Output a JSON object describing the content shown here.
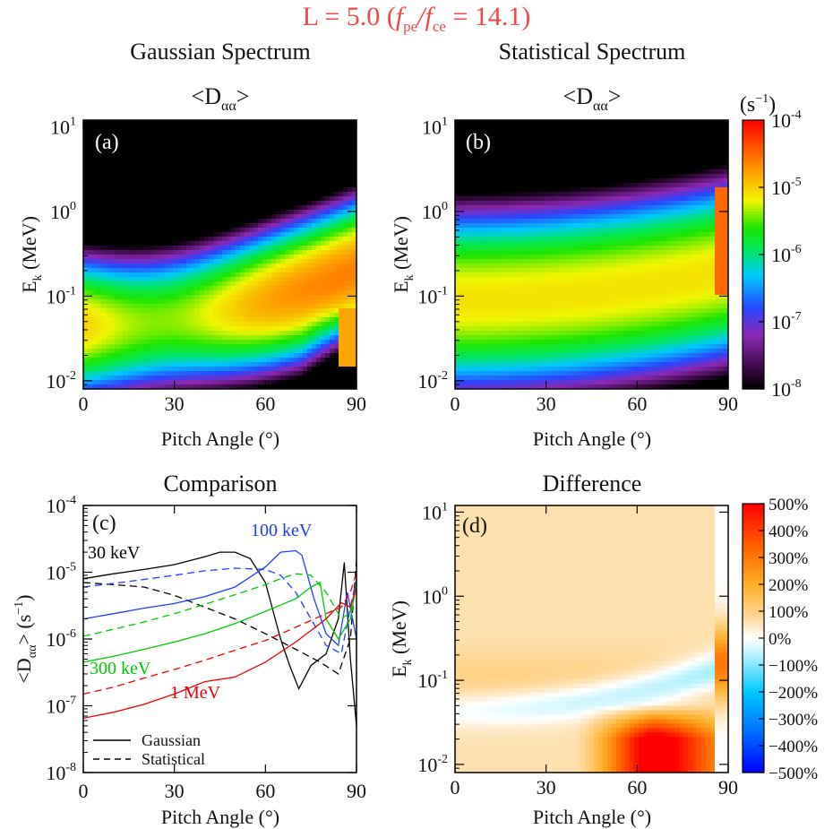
{
  "figure": {
    "title_prefix": "L = 5.0  (",
    "title_f1": "f",
    "title_sub1": "pe",
    "title_slash": "/",
    "title_f2": "f",
    "title_sub2": "ce",
    "title_suffix": " = 14.1)",
    "title_color": "#f04848",
    "col_titles": [
      "Gaussian Spectrum",
      "Statistical Spectrum"
    ]
  },
  "colors": {
    "diff_low": "#0000ff",
    "diff_mid": "#ffffff",
    "diff_high": "#ff0000",
    "gauss_30": "#000000",
    "gauss_100": "#1e3cff",
    "gauss_300": "#00cc00",
    "gauss_1000": "#ee0000"
  },
  "chart_data": [
    {
      "panel": "a",
      "type": "heatmap",
      "title": "<Dαα>",
      "title_main": "<D",
      "title_sub": "αα",
      "title_end": ">",
      "label": "(a)",
      "xlabel": "Pitch Angle (°)",
      "ylabel_main": "E",
      "ylabel_sub": "k",
      "ylabel_end": " (MeV)",
      "xlim": [
        0,
        90
      ],
      "xticks": [
        0,
        30,
        60,
        90
      ],
      "ylim": [
        0.008,
        12
      ],
      "ylog": true,
      "yticks": [
        {
          "base": "10",
          "exp": "-2"
        },
        {
          "base": "10",
          "exp": "-1"
        },
        {
          "base": "10",
          "exp": "0"
        },
        {
          "base": "10",
          "exp": "1"
        }
      ],
      "zlim": [
        1e-08,
        0.0001
      ],
      "zlog": true,
      "features": {
        "ridge_center_log_energy_at_0deg": -1.35,
        "ridge_center_log_energy_at_90deg": -0.7,
        "ridge_peak_log_Daa": -4.6,
        "loss_cone_low_log_energy": 0.6,
        "colorbar": "rainbow"
      }
    },
    {
      "panel": "b",
      "type": "heatmap",
      "title": "<Dαα>",
      "title_main": "<D",
      "title_sub": "αα",
      "title_end": ">",
      "label": "(b)",
      "xlabel": "Pitch Angle (°)",
      "ylabel_main": "E",
      "ylabel_sub": "k",
      "ylabel_end": " (MeV)",
      "xlim": [
        0,
        90
      ],
      "xticks": [
        0,
        30,
        60,
        90
      ],
      "ylim": [
        0.008,
        12
      ],
      "ylog": true,
      "yticks": [
        {
          "base": "10",
          "exp": "-2"
        },
        {
          "base": "10",
          "exp": "-1"
        },
        {
          "base": "10",
          "exp": "0"
        },
        {
          "base": "10",
          "exp": "1"
        }
      ],
      "zlim": [
        1e-08,
        0.0001
      ],
      "zlog": true,
      "colorbar": {
        "unit_main": "(s",
        "unit_exp": "−1",
        "unit_end": ")",
        "ticks": [
          {
            "base": "10",
            "exp": "-4"
          },
          {
            "base": "10",
            "exp": "-5"
          },
          {
            "base": "10",
            "exp": "-6"
          },
          {
            "base": "10",
            "exp": "-7"
          },
          {
            "base": "10",
            "exp": "-8"
          }
        ]
      }
    },
    {
      "panel": "c",
      "type": "line",
      "title": "Comparison",
      "label": "(c)",
      "xlabel": "Pitch Angle (°)",
      "ylabel_main": "<D",
      "ylabel_sub": "αα",
      "ylabel_end": "> (s",
      "ylabel_exp": "−1",
      "ylabel_close": ")",
      "xlim": [
        0,
        90
      ],
      "xticks": [
        0,
        30,
        60,
        90
      ],
      "ylim": [
        1e-08,
        0.0001
      ],
      "ylog": true,
      "yticks": [
        {
          "base": "10",
          "exp": "-8"
        },
        {
          "base": "10",
          "exp": "-7"
        },
        {
          "base": "10",
          "exp": "-6"
        },
        {
          "base": "10",
          "exp": "-5"
        },
        {
          "base": "10",
          "exp": "-4"
        }
      ],
      "legend": [
        {
          "label": "Gaussian",
          "style": "solid"
        },
        {
          "label": "Statistical",
          "style": "dashed"
        }
      ],
      "series": [
        {
          "name": "30 keV",
          "energy": "30 keV",
          "spectrum": "Gaussian",
          "color": "#000000",
          "style": "solid",
          "x": [
            0,
            10,
            20,
            30,
            40,
            45,
            50,
            55,
            60,
            65,
            68,
            71,
            75,
            80,
            84,
            86,
            88,
            90
          ],
          "y": [
            8e-06,
            9.5e-06,
            1.1e-05,
            1.3e-05,
            1.7e-05,
            2e-05,
            2e-05,
            1.6e-05,
            7e-06,
            1e-06,
            4e-07,
            1.8e-07,
            4e-07,
            6e-07,
            2e-06,
            1.4e-05,
            5e-07,
            5e-08
          ]
        },
        {
          "name": "30 keV",
          "energy": "30 keV",
          "spectrum": "Statistical",
          "color": "#000000",
          "style": "dashed",
          "x": [
            0,
            10,
            20,
            30,
            40,
            50,
            60,
            70,
            78,
            84,
            88,
            90
          ],
          "y": [
            7e-06,
            6.5e-06,
            6e-06,
            4.5e-06,
            3e-06,
            2e-06,
            1.2e-06,
            7e-07,
            4.5e-07,
            3e-07,
            1e-06,
            1.5e-05
          ]
        },
        {
          "name": "100 keV",
          "energy": "100 keV",
          "spectrum": "Gaussian",
          "color": "#1e3cff",
          "style": "solid",
          "x": [
            0,
            10,
            20,
            30,
            40,
            50,
            60,
            65,
            70,
            72,
            76,
            80,
            84,
            87,
            90
          ],
          "y": [
            2e-06,
            2.4e-06,
            2.9e-06,
            3.4e-06,
            4.3e-06,
            6e-06,
            1.2e-05,
            2e-05,
            2.1e-05,
            1.8e-05,
            4e-06,
            1.2e-06,
            8e-07,
            5e-06,
            1e-06
          ]
        },
        {
          "name": "100 keV",
          "energy": "100 keV",
          "spectrum": "Statistical",
          "color": "#1e3cff",
          "style": "dashed",
          "x": [
            0,
            10,
            20,
            30,
            40,
            50,
            60,
            65,
            70,
            75,
            80,
            85,
            88,
            90
          ],
          "y": [
            6e-06,
            6.8e-06,
            7.8e-06,
            9e-06,
            1.05e-05,
            1.15e-05,
            1.1e-05,
            9e-06,
            5e-06,
            2e-06,
            8e-07,
            6e-07,
            3e-06,
            8e-06
          ]
        },
        {
          "name": "300 keV",
          "energy": "300 keV",
          "spectrum": "Gaussian",
          "color": "#00cc00",
          "style": "solid",
          "x": [
            0,
            10,
            20,
            30,
            40,
            50,
            60,
            70,
            75,
            78,
            80,
            84,
            88,
            90
          ],
          "y": [
            4.5e-07,
            5.5e-07,
            7e-07,
            9e-07,
            1.2e-06,
            1.7e-06,
            2.6e-06,
            4e-06,
            6e-06,
            7e-06,
            2e-06,
            1e-06,
            2e-06,
            7e-06
          ]
        },
        {
          "name": "300 keV",
          "energy": "300 keV",
          "spectrum": "Statistical",
          "color": "#00cc00",
          "style": "dashed",
          "x": [
            0,
            10,
            20,
            30,
            40,
            50,
            60,
            65,
            70,
            75,
            80,
            85,
            88,
            90
          ],
          "y": [
            1.1e-06,
            1.4e-06,
            1.8e-06,
            2.4e-06,
            3.3e-06,
            4.6e-06,
            6.5e-06,
            8e-06,
            9.5e-06,
            9e-06,
            5e-06,
            2e-06,
            2.5e-06,
            6e-06
          ]
        },
        {
          "name": "1 MeV",
          "energy": "1 MeV",
          "spectrum": "Gaussian",
          "color": "#ee0000",
          "style": "solid",
          "x": [
            0,
            10,
            20,
            30,
            40,
            50,
            60,
            70,
            80,
            85,
            88,
            90
          ],
          "y": [
            6.5e-08,
            8e-08,
            1.05e-07,
            1.5e-07,
            2.3e-07,
            2.7e-07,
            4.5e-07,
            9e-07,
            2e-06,
            3.5e-06,
            3e-06,
            6e-06
          ]
        },
        {
          "name": "1 MeV",
          "energy": "1 MeV",
          "spectrum": "Statistical",
          "color": "#ee0000",
          "style": "dashed",
          "x": [
            0,
            10,
            20,
            30,
            40,
            50,
            60,
            70,
            80,
            85,
            88,
            90
          ],
          "y": [
            1.5e-07,
            1.9e-07,
            2.6e-07,
            3.5e-07,
            4.8e-07,
            6.8e-07,
            9.5e-07,
            1.5e-06,
            2.4e-06,
            3e-06,
            5e-06,
            1e-05
          ]
        }
      ],
      "annotations": [
        {
          "text": "30 keV",
          "color": "#000000"
        },
        {
          "text": "100 keV",
          "color": "#1e3cff"
        },
        {
          "text": "300 keV",
          "color": "#00cc00"
        },
        {
          "text": "1 MeV",
          "color": "#ee0000"
        }
      ]
    },
    {
      "panel": "d",
      "type": "heatmap",
      "title": "Difference",
      "label": "(d)",
      "xlabel": "Pitch Angle (°)",
      "ylabel_main": "E",
      "ylabel_sub": "k",
      "ylabel_end": " (MeV)",
      "xlim": [
        0,
        90
      ],
      "xticks": [
        0,
        30,
        60,
        90
      ],
      "ylim": [
        0.008,
        12
      ],
      "ylog": true,
      "yticks": [
        {
          "base": "10",
          "exp": "-2"
        },
        {
          "base": "10",
          "exp": "-1"
        },
        {
          "base": "10",
          "exp": "0"
        },
        {
          "base": "10",
          "exp": "1"
        }
      ],
      "zlim": [
        -500,
        500
      ],
      "colorbar": {
        "ticks": [
          "500%",
          "400%",
          "300%",
          "200%",
          "100%",
          "0%",
          "−100%",
          "−200%",
          "−300%",
          "−400%",
          "−500%"
        ]
      }
    }
  ]
}
